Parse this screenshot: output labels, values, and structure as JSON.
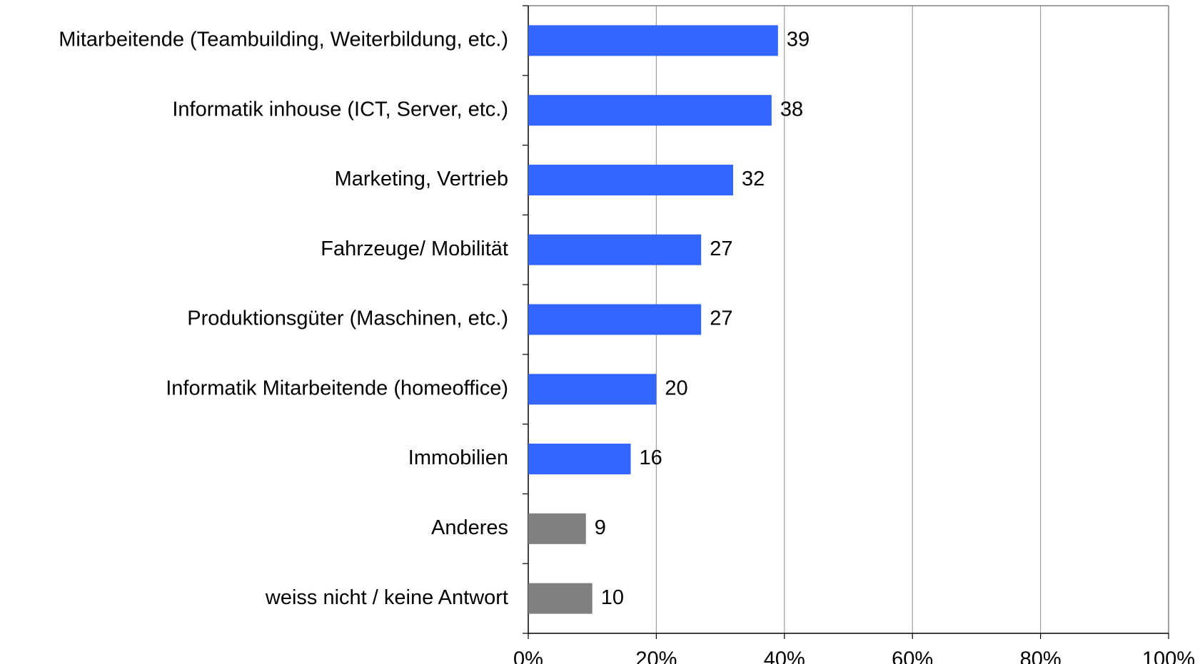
{
  "chart_data": {
    "type": "bar",
    "orientation": "horizontal",
    "categories": [
      "Mitarbeitende (Teambuilding, Weiterbildung, etc.)",
      "Informatik inhouse (ICT, Server, etc.)",
      "Marketing, Vertrieb",
      "Fahrzeuge/ Mobilität",
      "Produktionsgüter (Maschinen, etc.)",
      "Informatik Mitarbeitende (homeoffice)",
      "Immobilien",
      "Anderes",
      "weiss nicht / keine Antwort"
    ],
    "values": [
      39,
      38,
      32,
      27,
      27,
      20,
      16,
      9,
      10
    ],
    "colors": [
      "#3366ff",
      "#3366ff",
      "#3366ff",
      "#3366ff",
      "#3366ff",
      "#3366ff",
      "#3366ff",
      "#808080",
      "#808080"
    ],
    "xlim": [
      0,
      100
    ],
    "xticks": [
      {
        "value": 0,
        "label": "0%"
      },
      {
        "value": 20,
        "label": "20%"
      },
      {
        "value": 40,
        "label": "40%"
      },
      {
        "value": 60,
        "label": "60%"
      },
      {
        "value": 80,
        "label": "80%"
      },
      {
        "value": 100,
        "label": "100%"
      }
    ],
    "grid": true
  }
}
